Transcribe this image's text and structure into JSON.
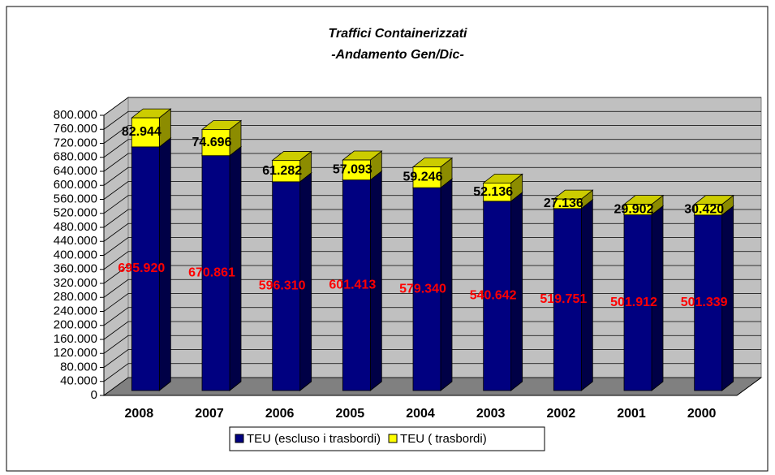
{
  "chart_data": {
    "type": "bar3d_stacked",
    "title": "Traffici Containerizzati",
    "subtitle": "-Andamento Gen/Dic-",
    "categories": [
      "2008",
      "2007",
      "2006",
      "2005",
      "2004",
      "2003",
      "2002",
      "2001",
      "2000"
    ],
    "series": [
      {
        "name": "TEU (escluso i trasbordi)",
        "color": "#000080",
        "label_color": "#ff0000",
        "values": [
          695920,
          670861,
          596310,
          601413,
          579340,
          540642,
          519751,
          501912,
          501339
        ],
        "value_labels": [
          "695.920",
          "670.861",
          "596.310",
          "601.413",
          "579.340",
          "540.642",
          "519.751",
          "501.912",
          "501.339"
        ]
      },
      {
        "name": "TEU ( trasbordi)",
        "color": "#ffff00",
        "label_color": "#000000",
        "values": [
          82944,
          74696,
          61282,
          57093,
          59246,
          52136,
          27136,
          29902,
          30420
        ],
        "value_labels": [
          "82.944",
          "74.696",
          "61.282",
          "57.093",
          "59.246",
          "52.136",
          "27.136",
          "29.902",
          "30.420"
        ]
      }
    ],
    "ylim": [
      0,
      800000
    ],
    "yticks": [
      0,
      {
        "value": 40000,
        "label": "40.000"
      },
      {
        "value": 80000,
        "label": "80.000"
      },
      {
        "value": 120000,
        "label": "120.000"
      },
      {
        "value": 160000,
        "label": "160.000"
      },
      {
        "value": 200000,
        "label": "200.000"
      },
      {
        "value": 240000,
        "label": "240.000"
      },
      {
        "value": 280000,
        "label": "280.000"
      },
      {
        "value": 320000,
        "label": "320.000"
      },
      {
        "value": 360000,
        "label": "360.000"
      },
      {
        "value": 400000,
        "label": "400.000"
      },
      {
        "value": 440000,
        "label": "440.000"
      },
      {
        "value": 480000,
        "label": "480.000"
      },
      {
        "value": 520000,
        "label": "520.000"
      },
      {
        "value": 560000,
        "label": "560.000"
      },
      {
        "value": 600000,
        "label": "600.000"
      },
      {
        "value": 640000,
        "label": "640.000"
      },
      {
        "value": 680000,
        "label": "680.000"
      },
      {
        "value": 720000,
        "label": "720.000"
      },
      {
        "value": 760000,
        "label": "760.000"
      },
      {
        "value": 800000,
        "label": "800.000"
      }
    ],
    "grid": true,
    "legend": "bottom"
  }
}
